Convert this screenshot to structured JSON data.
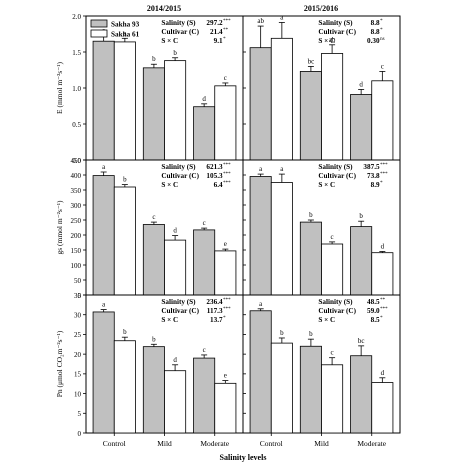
{
  "figure": {
    "column_titles": [
      "2014/2015",
      "2015/2016"
    ],
    "xlabel": "Salinity levels",
    "categories": [
      "Control",
      "Mild",
      "Moderate"
    ],
    "legend": [
      {
        "name": "Sakha 93",
        "color": "#c0c0c0"
      },
      {
        "name": "Sakha 61",
        "color": "#ffffff"
      }
    ]
  },
  "chart_data": [
    {
      "type": "bar",
      "row": 0,
      "col": 0,
      "ylabel": "E (mmol m⁻²s⁻¹)",
      "ylim": [
        0,
        2.0
      ],
      "yticks": [
        0,
        0.5,
        1.0,
        1.5,
        2.0
      ],
      "categories": [
        "Control",
        "Mild",
        "Moderate"
      ],
      "series": [
        {
          "name": "Sakha 93",
          "values": [
            1.65,
            1.28,
            0.74
          ],
          "errors": [
            0.08,
            0.05,
            0.04
          ],
          "letters": [
            "a",
            "b",
            "d"
          ]
        },
        {
          "name": "Sakha 61",
          "values": [
            1.64,
            1.38,
            1.03
          ],
          "errors": [
            0.05,
            0.04,
            0.04
          ],
          "letters": [
            "a",
            "b",
            "c"
          ]
        }
      ],
      "stats": [
        {
          "label": "Salinity (S)",
          "value": "297.2",
          "sig": "***"
        },
        {
          "label": "Cultivar (C)",
          "value": "21.4",
          "sig": "**"
        },
        {
          "label": "S × C",
          "value": "9.1",
          "sig": "*"
        }
      ]
    },
    {
      "type": "bar",
      "row": 0,
      "col": 1,
      "ylabel": "",
      "ylim": [
        0,
        2.0
      ],
      "yticks": [
        0,
        0.5,
        1.0,
        1.5,
        2.0
      ],
      "categories": [
        "Control",
        "Mild",
        "Moderate"
      ],
      "series": [
        {
          "name": "Sakha 93",
          "values": [
            1.56,
            1.23,
            0.91
          ],
          "errors": [
            0.3,
            0.07,
            0.07
          ],
          "letters": [
            "ab",
            "bc",
            "d"
          ]
        },
        {
          "name": "Sakha 61",
          "values": [
            1.69,
            1.48,
            1.1
          ],
          "errors": [
            0.22,
            0.12,
            0.13
          ],
          "letters": [
            "a",
            "ab",
            "c"
          ]
        }
      ],
      "stats": [
        {
          "label": "Salinity (S)",
          "value": "8.8",
          "sig": "*"
        },
        {
          "label": "Cultivar (C)",
          "value": "8.8",
          "sig": "*"
        },
        {
          "label": "S × C",
          "value": "0.30",
          "sig": "ns"
        }
      ]
    },
    {
      "type": "bar",
      "row": 1,
      "col": 0,
      "ylabel": "gs (mmol m⁻²s⁻¹)",
      "ylim": [
        0,
        450
      ],
      "yticks": [
        0,
        50,
        100,
        150,
        200,
        250,
        300,
        350,
        400,
        450
      ],
      "categories": [
        "Control",
        "Mild",
        "Moderate"
      ],
      "series": [
        {
          "name": "Sakha 93",
          "values": [
            398,
            235,
            217
          ],
          "errors": [
            12,
            8,
            6
          ],
          "letters": [
            "a",
            "c",
            "c"
          ]
        },
        {
          "name": "Sakha 61",
          "values": [
            360,
            183,
            147
          ],
          "errors": [
            8,
            15,
            6
          ],
          "letters": [
            "b",
            "d",
            "e"
          ]
        }
      ],
      "stats": [
        {
          "label": "Salinity (S)",
          "value": "621.3",
          "sig": "***"
        },
        {
          "label": "Cultivar (C)",
          "value": "105.3",
          "sig": "***"
        },
        {
          "label": "S × C",
          "value": "6.4",
          "sig": "***"
        }
      ]
    },
    {
      "type": "bar",
      "row": 1,
      "col": 1,
      "ylabel": "",
      "ylim": [
        0,
        450
      ],
      "yticks": [
        0,
        50,
        100,
        150,
        200,
        250,
        300,
        350,
        400,
        450
      ],
      "categories": [
        "Control",
        "Mild",
        "Moderate"
      ],
      "series": [
        {
          "name": "Sakha 93",
          "values": [
            395,
            243,
            228
          ],
          "errors": [
            8,
            7,
            18
          ],
          "letters": [
            "a",
            "b",
            "b"
          ]
        },
        {
          "name": "Sakha 61",
          "values": [
            375,
            170,
            141
          ],
          "errors": [
            28,
            7,
            4
          ],
          "letters": [
            "a",
            "c",
            "d"
          ]
        }
      ],
      "stats": [
        {
          "label": "Salinity (S)",
          "value": "387.5",
          "sig": "***"
        },
        {
          "label": "Cultivar (C)",
          "value": "73.8",
          "sig": "***"
        },
        {
          "label": "S × C",
          "value": "8.9",
          "sig": "*"
        }
      ]
    },
    {
      "type": "bar",
      "row": 2,
      "col": 0,
      "ylabel": "Pn (μmol CO₂m⁻²s⁻¹)",
      "ylim": [
        0,
        35
      ],
      "yticks": [
        0,
        5,
        10,
        15,
        20,
        25,
        30,
        35
      ],
      "categories": [
        "Control",
        "Mild",
        "Moderate"
      ],
      "series": [
        {
          "name": "Sakha 93",
          "values": [
            30.7,
            21.9,
            19.0
          ],
          "errors": [
            0.6,
            0.6,
            0.8
          ],
          "letters": [
            "a",
            "b",
            "c"
          ]
        },
        {
          "name": "Sakha 61",
          "values": [
            23.4,
            15.8,
            12.6
          ],
          "errors": [
            0.9,
            1.5,
            0.7
          ],
          "letters": [
            "b",
            "d",
            "e"
          ]
        }
      ],
      "stats": [
        {
          "label": "Salinity (S)",
          "value": "236.4",
          "sig": "***"
        },
        {
          "label": "Cultivar (C)",
          "value": "117.3",
          "sig": "***"
        },
        {
          "label": "S × C",
          "value": "13.7",
          "sig": "*"
        }
      ]
    },
    {
      "type": "bar",
      "row": 2,
      "col": 1,
      "ylabel": "",
      "ylim": [
        0,
        35
      ],
      "yticks": [
        0,
        5,
        10,
        15,
        20,
        25,
        30,
        35
      ],
      "categories": [
        "Control",
        "Mild",
        "Moderate"
      ],
      "series": [
        {
          "name": "Sakha 93",
          "values": [
            31.0,
            22.0,
            19.6
          ],
          "errors": [
            0.5,
            1.8,
            2.5
          ],
          "letters": [
            "a",
            "b",
            "bc"
          ]
        },
        {
          "name": "Sakha 61",
          "values": [
            22.8,
            17.3,
            12.8
          ],
          "errors": [
            1.3,
            1.8,
            1.2
          ],
          "letters": [
            "b",
            "c",
            "d"
          ]
        }
      ],
      "stats": [
        {
          "label": "Salinity (S)",
          "value": "48.5",
          "sig": "**"
        },
        {
          "label": "Cultivar (C)",
          "value": "59.0",
          "sig": "***"
        },
        {
          "label": "S × C",
          "value": "8.5",
          "sig": "*"
        }
      ]
    }
  ]
}
